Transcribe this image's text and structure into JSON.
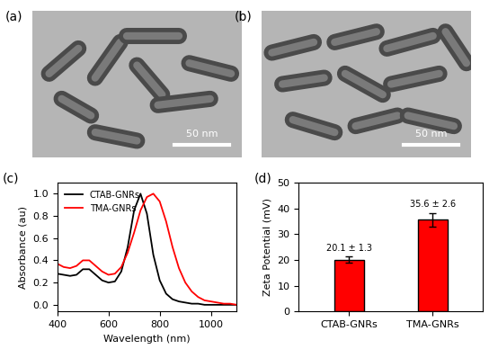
{
  "images": [
    {
      "title": "(a)",
      "scale_bar": "50 nm"
    },
    {
      "title": "(b)",
      "scale_bar": "50 nm"
    }
  ],
  "chart_data": [
    {
      "type": "line",
      "title": "(c)",
      "x_label": "Wavelength (nm)",
      "y_label": "Absorbance (au)",
      "x": [
        400,
        425,
        450,
        475,
        500,
        525,
        550,
        575,
        600,
        625,
        650,
        675,
        700,
        725,
        750,
        775,
        800,
        825,
        850,
        875,
        900,
        925,
        950,
        975,
        1000,
        1025,
        1050,
        1075,
        1100
      ],
      "series": [
        {
          "name": "CTAB-GNRs",
          "color": "#000000",
          "values": [
            0.28,
            0.27,
            0.26,
            0.27,
            0.32,
            0.32,
            0.27,
            0.22,
            0.2,
            0.21,
            0.3,
            0.52,
            0.85,
            1.0,
            0.82,
            0.45,
            0.22,
            0.1,
            0.05,
            0.03,
            0.02,
            0.01,
            0.01,
            0.0,
            0.0,
            0.0,
            0.0,
            0.0,
            0.0
          ]
        },
        {
          "name": "TMA-GNRs",
          "color": "#ff0000",
          "values": [
            0.37,
            0.34,
            0.33,
            0.35,
            0.4,
            0.4,
            0.35,
            0.3,
            0.27,
            0.28,
            0.34,
            0.47,
            0.65,
            0.85,
            0.97,
            1.0,
            0.93,
            0.75,
            0.52,
            0.33,
            0.2,
            0.12,
            0.07,
            0.04,
            0.03,
            0.02,
            0.01,
            0.01,
            0.0
          ]
        }
      ],
      "xlim": [
        400,
        1100
      ],
      "xticks": [
        400,
        600,
        800,
        1000
      ],
      "ylim": [
        -0.06,
        1.1
      ],
      "yticks": [
        {
          "value": 0,
          "label": "0.0"
        },
        {
          "value": 0.2,
          "label": "0.2"
        },
        {
          "value": 0.4,
          "label": "0.4"
        },
        {
          "value": 0.6,
          "label": "0.6"
        },
        {
          "value": 0.8,
          "label": "0.8"
        },
        {
          "value": 1,
          "label": "1.0"
        }
      ],
      "legend": "upper left"
    },
    {
      "type": "bar",
      "title": "(d)",
      "y_label": "Zeta Potential (mV)",
      "categories": [
        "CTAB-GNRs",
        "TMA-GNRs"
      ],
      "values": [
        20.1,
        35.6
      ],
      "errors": [
        1.3,
        2.6
      ],
      "value_labels": [
        "20.1 ± 1.3",
        "35.6 ± 2.6"
      ],
      "data_labels": true,
      "color": "#ff0000",
      "ylim": [
        0,
        50
      ],
      "yticks": [
        0,
        10,
        20,
        30,
        40,
        50
      ]
    }
  ]
}
